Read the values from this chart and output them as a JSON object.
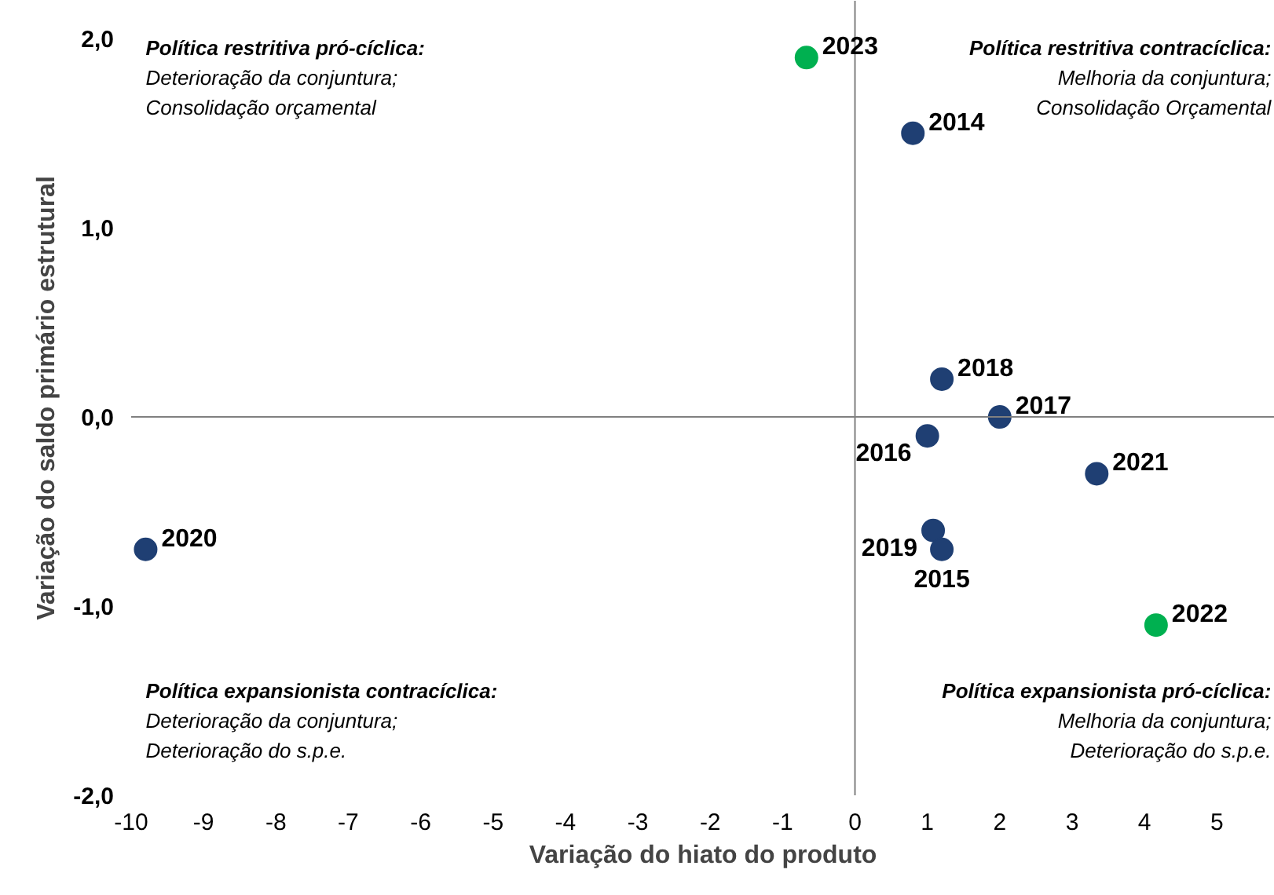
{
  "chart_data": {
    "type": "scatter",
    "xlabel": "Variação do hiato do produto",
    "ylabel": "Variação do saldo primário estrutural",
    "x": [
      -0.67,
      0.8,
      1.2,
      2.0,
      1.0,
      3.34,
      1.08,
      1.2,
      -9.8,
      4.16
    ],
    "values": [
      1.9,
      1.5,
      0.2,
      0.0,
      -0.1,
      -0.3,
      -0.6,
      -0.7,
      -0.7,
      -1.1
    ],
    "colors": [
      "#00b050",
      "#1f3f73",
      "#1f3f73",
      "#1f3f73",
      "#1f3f73",
      "#1f3f73",
      "#1f3f73",
      "#1f3f73",
      "#1f3f73",
      "#00b050"
    ],
    "marker": "circle",
    "xlim": [
      -10,
      5.8
    ],
    "ylim": [
      -2,
      2.2
    ],
    "xticks": [
      -10,
      -9,
      -8,
      -7,
      -6,
      -5,
      -4,
      -3,
      -2,
      -1,
      0,
      1,
      2,
      3,
      4,
      5
    ],
    "yticks": [
      {
        "value": -2,
        "label": "-2,0"
      },
      {
        "value": -1,
        "label": "-1,0"
      },
      {
        "value": 0,
        "label": "0,0"
      },
      {
        "value": 1,
        "label": "1,0"
      },
      {
        "value": 2,
        "label": "2,0"
      }
    ],
    "annotations": [
      {
        "text": "2023",
        "x": -0.67,
        "y": 1.9
      },
      {
        "text": "2014",
        "x": 0.8,
        "y": 1.5
      },
      {
        "text": "2018",
        "x": 1.2,
        "y": 0.2
      },
      {
        "text": "2017",
        "x": 2.0,
        "y": 0.0
      },
      {
        "text": "2016",
        "x": 1.0,
        "y": -0.1
      },
      {
        "text": "2021",
        "x": 3.34,
        "y": -0.3
      },
      {
        "text": "2019",
        "x": 1.08,
        "y": -0.6
      },
      {
        "text": "2015",
        "x": 1.2,
        "y": -0.7
      },
      {
        "text": "2020",
        "x": -9.8,
        "y": -0.7
      },
      {
        "text": "2022",
        "x": 4.16,
        "y": -1.1
      },
      "Política restritiva pró-cíclica:\nDeterioração da conjuntura;\nConsolidação orçamental",
      "Política restritiva contracíclica:\nMelhoria da conjuntura;\nConsolidação Orçamental",
      "Política expansionista contracíclica:\nDeterioração da conjuntura;\nDeterioração do s.p.e.",
      "Política expansionista pró-cíclica:\nMelhoria da conjuntura;\nDeterioração do s.p.e."
    ]
  }
}
